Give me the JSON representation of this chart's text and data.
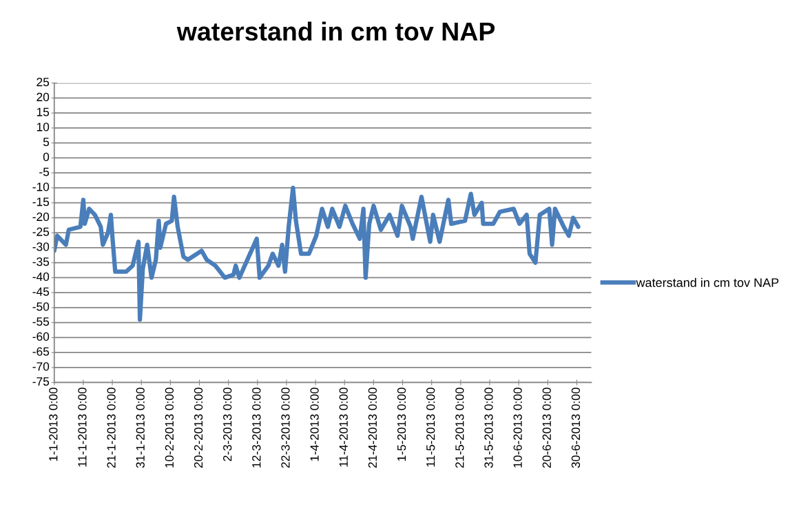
{
  "chart_data": {
    "type": "line",
    "title": "waterstand in cm tov NAP",
    "x": [
      "2013-01-01",
      "2013-01-02",
      "2013-01-05",
      "2013-01-06",
      "2013-01-10",
      "2013-01-11",
      "2013-01-11T12:00",
      "2013-01-13",
      "2013-01-15",
      "2013-01-17",
      "2013-01-17T18:00",
      "2013-01-19T12:00",
      "2013-01-20T12:00",
      "2013-01-21",
      "2013-01-22",
      "2013-01-25T18:00",
      "2013-01-28",
      "2013-01-30",
      "2013-01-30T12:00",
      "2013-01-31T12:00",
      "2013-02-02",
      "2013-02-03T12:00",
      "2013-02-05",
      "2013-02-06",
      "2013-02-06T12:00",
      "2013-02-08T12:00",
      "2013-02-10T12:00",
      "2013-02-11T06:00",
      "2013-02-12T12:00",
      "2013-02-14T12:00",
      "2013-02-16",
      "2013-02-20T18:00",
      "2013-02-22T12:00",
      "2013-02-25T12:00",
      "2013-02-28T18:00",
      "2013-03-03T18:00",
      "2013-03-04T12:00",
      "2013-03-05T18:00",
      "2013-03-11T18:00",
      "2013-03-12T18:00",
      "2013-03-15T18:00",
      "2013-03-17T06:00",
      "2013-03-19T06:00",
      "2013-03-20T12:00",
      "2013-03-21T12:00",
      "2013-03-22T18:00",
      "2013-03-24T06:00",
      "2013-03-25T06:00",
      "2013-03-27",
      "2013-03-29T18:00",
      "2013-04-01T06:00",
      "2013-04-03T06:00",
      "2013-04-05T06:00",
      "2013-04-06T18:00",
      "2013-04-09T06:00",
      "2013-04-11T06:00",
      "2013-04-13T18:00",
      "2013-04-16T06:00",
      "2013-04-17T12:00",
      "2013-04-18T06:00",
      "2013-04-19T12:00",
      "2013-04-21",
      "2013-04-23T12:00",
      "2013-04-26T12:00",
      "2013-04-29T06:00",
      "2013-04-30T18:00",
      "2013-05-03T18:00",
      "2013-05-04T12:00",
      "2013-05-07T12:00",
      "2013-05-10T12:00",
      "2013-05-11T12:00",
      "2013-05-13T18:00",
      "2013-05-16T18:00",
      "2013-05-17T18:00",
      "2013-05-22T12:00",
      "2013-05-24T12:00",
      "2013-05-25T18:00",
      "2013-05-28T06:00",
      "2013-05-28T18:00",
      "2013-06-01T06:00",
      "2013-06-03T12:00",
      "2013-06-08T06:00",
      "2013-06-10T06:00",
      "2013-06-12T18:00",
      "2013-06-13T18:00",
      "2013-06-15T18:00",
      "2013-06-17T06:00",
      "2013-06-20T12:00",
      "2013-06-21T12:00",
      "2013-06-22T12:00",
      "2013-06-25T12:00",
      "2013-06-27T06:00",
      "2013-06-28T18:00",
      "2013-06-30T12:00"
    ],
    "series": [
      {
        "name": "waterstand in cm tov NAP",
        "color": "#4a7ebb",
        "values": [
          -31,
          -26,
          -29,
          -24,
          -23,
          -14,
          -22,
          -17,
          -19,
          -23,
          -29,
          -25,
          -19,
          -26,
          -38,
          -38,
          -36,
          -28,
          -54,
          -37,
          -29,
          -40,
          -34,
          -21,
          -30,
          -22,
          -21,
          -13,
          -23,
          -33,
          -34,
          -31,
          -34,
          -36,
          -40,
          -39,
          -36,
          -40,
          -27,
          -40,
          -36,
          -32,
          -36,
          -29,
          -38,
          -23,
          -10,
          -21,
          -32,
          -32,
          -26,
          -17,
          -23,
          -17,
          -23,
          -16,
          -22,
          -27,
          -17,
          -40,
          -22,
          -16,
          -24,
          -19,
          -26,
          -16,
          -23,
          -27,
          -13,
          -28,
          -19,
          -28,
          -14,
          -22,
          -21,
          -12,
          -19,
          -15,
          -22,
          -22,
          -18,
          -17,
          -22,
          -19,
          -32,
          -35,
          -19,
          -17,
          -29,
          -17,
          -23,
          -26,
          -20,
          -23
        ]
      }
    ],
    "xlim": [
      "2013-01-01",
      "2013-07-05"
    ],
    "xticks": [
      {
        "value": "2013-01-01",
        "label": "1-1-2013 0:00"
      },
      {
        "value": "2013-01-11",
        "label": "11-1-2013 0:00"
      },
      {
        "value": "2013-01-21",
        "label": "21-1-2013 0:00"
      },
      {
        "value": "2013-01-31",
        "label": "31-1-2013 0:00"
      },
      {
        "value": "2013-02-10",
        "label": "10-2-2013 0:00"
      },
      {
        "value": "2013-02-20",
        "label": "20-2-2013 0:00"
      },
      {
        "value": "2013-03-02",
        "label": "2-3-2013 0:00"
      },
      {
        "value": "2013-03-12",
        "label": "12-3-2013 0:00"
      },
      {
        "value": "2013-03-22",
        "label": "22-3-2013 0:00"
      },
      {
        "value": "2013-04-01",
        "label": "1-4-2013 0:00"
      },
      {
        "value": "2013-04-11",
        "label": "11-4-2013 0:00"
      },
      {
        "value": "2013-04-21",
        "label": "21-4-2013 0:00"
      },
      {
        "value": "2013-05-01",
        "label": "1-5-2013 0:00"
      },
      {
        "value": "2013-05-11",
        "label": "11-5-2013 0:00"
      },
      {
        "value": "2013-05-21",
        "label": "21-5-2013 0:00"
      },
      {
        "value": "2013-05-31",
        "label": "31-5-2013 0:00"
      },
      {
        "value": "2013-06-10",
        "label": "10-6-2013 0:00"
      },
      {
        "value": "2013-06-20",
        "label": "20-6-2013 0:00"
      },
      {
        "value": "2013-06-30",
        "label": "30-6-2013 0:00"
      }
    ],
    "ylim": [
      -75,
      25
    ],
    "yticks": [
      -75,
      -70,
      -65,
      -60,
      -55,
      -50,
      -45,
      -40,
      -35,
      -30,
      -25,
      -20,
      -15,
      -10,
      -5,
      0,
      5,
      10,
      15,
      20,
      25
    ],
    "grid": "y",
    "legend": "right",
    "marker": "none",
    "line_style": "solid"
  }
}
